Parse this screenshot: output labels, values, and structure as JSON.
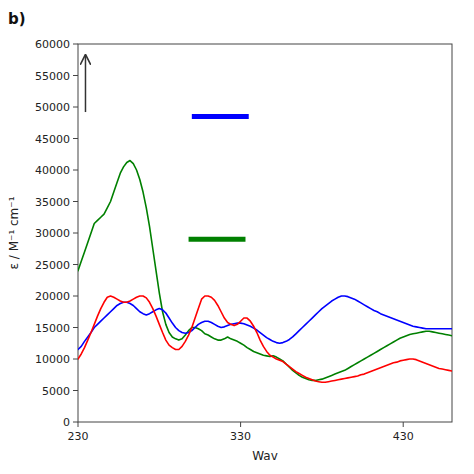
{
  "chart_data": {
    "type": "line",
    "title": "b)",
    "xlabel": "Wav",
    "ylabel": "ε / M⁻¹ cm⁻¹",
    "xlim": [
      230,
      460
    ],
    "ylim": [
      0,
      60000
    ],
    "xticks": [
      230,
      330,
      430
    ],
    "yticks": [
      0,
      5000,
      10000,
      15000,
      20000,
      25000,
      30000,
      35000,
      40000,
      45000,
      50000,
      55000,
      60000
    ],
    "grid": false,
    "x": [
      230,
      232,
      234,
      236,
      238,
      240,
      242,
      244,
      246,
      248,
      250,
      252,
      254,
      256,
      258,
      260,
      262,
      264,
      266,
      268,
      270,
      272,
      274,
      276,
      278,
      280,
      282,
      284,
      286,
      288,
      290,
      292,
      294,
      296,
      298,
      300,
      302,
      304,
      306,
      308,
      310,
      312,
      314,
      316,
      318,
      320,
      322,
      324,
      326,
      328,
      330,
      332,
      334,
      336,
      338,
      340,
      342,
      344,
      346,
      348,
      350,
      352,
      354,
      356,
      358,
      360,
      362,
      364,
      366,
      368,
      370,
      372,
      374,
      376,
      378,
      380,
      382,
      384,
      386,
      388,
      390,
      392,
      394,
      396,
      398,
      400,
      402,
      404,
      406,
      408,
      410,
      412,
      414,
      416,
      418,
      420,
      422,
      424,
      426,
      428,
      430,
      432,
      434,
      436,
      438,
      440,
      442,
      444,
      446,
      448,
      450,
      452,
      454,
      456,
      458,
      460
    ],
    "series": [
      {
        "color": "green",
        "values": [
          24000,
          25500,
          27000,
          28500,
          30000,
          31500,
          32000,
          32500,
          33000,
          34000,
          35000,
          36500,
          38000,
          39500,
          40500,
          41200,
          41500,
          41000,
          40000,
          38500,
          36500,
          34000,
          31000,
          27500,
          24000,
          20500,
          17500,
          15500,
          14200,
          13500,
          13200,
          13000,
          13200,
          13800,
          14500,
          15000,
          15000,
          14800,
          14500,
          14000,
          13800,
          13500,
          13200,
          13000,
          13000,
          13200,
          13500,
          13200,
          13000,
          12800,
          12500,
          12200,
          11800,
          11500,
          11200,
          11000,
          10800,
          10600,
          10500,
          10400,
          10500,
          10300,
          10000,
          9700,
          9200,
          8700,
          8200,
          7800,
          7400,
          7100,
          6900,
          6700,
          6600,
          6600,
          6700,
          6800,
          7000,
          7200,
          7400,
          7600,
          7800,
          8000,
          8200,
          8500,
          8800,
          9100,
          9400,
          9700,
          10000,
          10300,
          10600,
          10900,
          11200,
          11500,
          11800,
          12100,
          12400,
          12700,
          13000,
          13300,
          13500,
          13700,
          13900,
          14000,
          14100,
          14200,
          14300,
          14400,
          14400,
          14300,
          14200,
          14100,
          14000,
          13900,
          13800,
          13700
        ]
      },
      {
        "color": "blue",
        "values": [
          11500,
          12000,
          12800,
          13500,
          14200,
          15000,
          15500,
          16000,
          16500,
          17000,
          17500,
          18000,
          18500,
          18800,
          19000,
          19000,
          18800,
          18500,
          18000,
          17500,
          17200,
          17000,
          17200,
          17500,
          17800,
          18000,
          17800,
          17300,
          16500,
          15700,
          15000,
          14500,
          14200,
          14100,
          14200,
          14500,
          15000,
          15500,
          15800,
          16000,
          16000,
          15800,
          15500,
          15200,
          15000,
          15100,
          15300,
          15500,
          15600,
          15700,
          15700,
          15600,
          15400,
          15200,
          14900,
          14600,
          14200,
          13800,
          13400,
          13100,
          12800,
          12600,
          12500,
          12600,
          12800,
          13100,
          13500,
          14000,
          14500,
          15000,
          15500,
          16000,
          16500,
          17000,
          17500,
          18000,
          18400,
          18800,
          19200,
          19500,
          19800,
          20000,
          20000,
          19900,
          19700,
          19500,
          19200,
          18900,
          18600,
          18300,
          18000,
          17700,
          17500,
          17200,
          17000,
          16800,
          16600,
          16400,
          16200,
          16000,
          15800,
          15600,
          15400,
          15200,
          15100,
          15000,
          14900,
          14800,
          14800,
          14800,
          14800,
          14800,
          14800,
          14800,
          14800,
          14800
        ]
      },
      {
        "color": "red",
        "values": [
          10000,
          10800,
          11800,
          13000,
          14200,
          15500,
          16800,
          18000,
          19000,
          19800,
          20000,
          19800,
          19500,
          19200,
          19000,
          19000,
          19200,
          19500,
          19800,
          20000,
          20000,
          19700,
          19000,
          18000,
          16800,
          15500,
          14200,
          13000,
          12200,
          11800,
          11500,
          11500,
          12000,
          12800,
          13800,
          15000,
          16500,
          18000,
          19500,
          20000,
          20000,
          19800,
          19300,
          18500,
          17500,
          16500,
          15800,
          15500,
          15300,
          15500,
          16000,
          16500,
          16500,
          16000,
          15200,
          14200,
          13000,
          12000,
          11200,
          10600,
          10300,
          10000,
          9800,
          9600,
          9200,
          8800,
          8400,
          8000,
          7700,
          7400,
          7100,
          6900,
          6700,
          6500,
          6400,
          6300,
          6300,
          6400,
          6500,
          6600,
          6700,
          6800,
          6900,
          7000,
          7100,
          7200,
          7300,
          7500,
          7600,
          7800,
          8000,
          8200,
          8400,
          8600,
          8800,
          9000,
          9200,
          9400,
          9500,
          9700,
          9800,
          9900,
          10000,
          10000,
          9900,
          9700,
          9500,
          9300,
          9100,
          8900,
          8700,
          8500,
          8400,
          8300,
          8200,
          8100
        ]
      },
      {
        "color": "blue",
        "x": [
          300,
          335
        ],
        "values": [
          48500,
          48500
        ]
      },
      {
        "color": "green",
        "x": [
          298,
          333
        ],
        "values": [
          29000,
          29000
        ]
      }
    ]
  }
}
